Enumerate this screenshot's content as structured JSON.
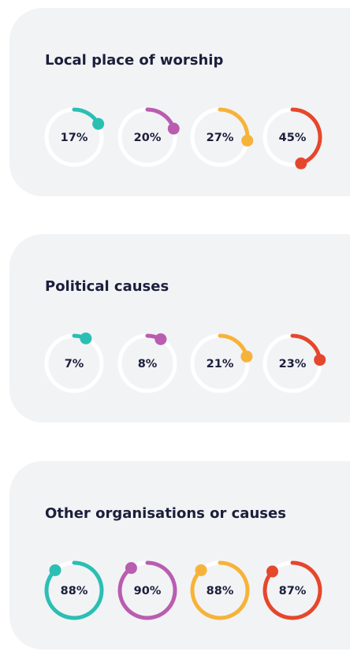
{
  "chart_data": [
    {
      "type": "progress-ring",
      "title": "Local place of worship",
      "values": [
        17,
        20,
        27,
        45
      ],
      "value_labels": [
        "17%",
        "20%",
        "27%",
        "45%"
      ],
      "colors": [
        "#2bbfb3",
        "#b95db0",
        "#f6b33a",
        "#e5472c"
      ],
      "ylim": [
        0,
        100
      ]
    },
    {
      "type": "progress-ring",
      "title": "Political causes",
      "values": [
        7,
        8,
        21,
        23
      ],
      "value_labels": [
        "7%",
        "8%",
        "21%",
        "23%"
      ],
      "colors": [
        "#2bbfb3",
        "#b95db0",
        "#f6b33a",
        "#e5472c"
      ],
      "ylim": [
        0,
        100
      ]
    },
    {
      "type": "progress-ring",
      "title": "Other organisations or causes",
      "values": [
        88,
        90,
        88,
        87
      ],
      "value_labels": [
        "88%",
        "90%",
        "88%",
        "87%"
      ],
      "colors": [
        "#2bbfb3",
        "#b95db0",
        "#f6b33a",
        "#e5472c"
      ],
      "ylim": [
        0,
        100
      ]
    }
  ]
}
